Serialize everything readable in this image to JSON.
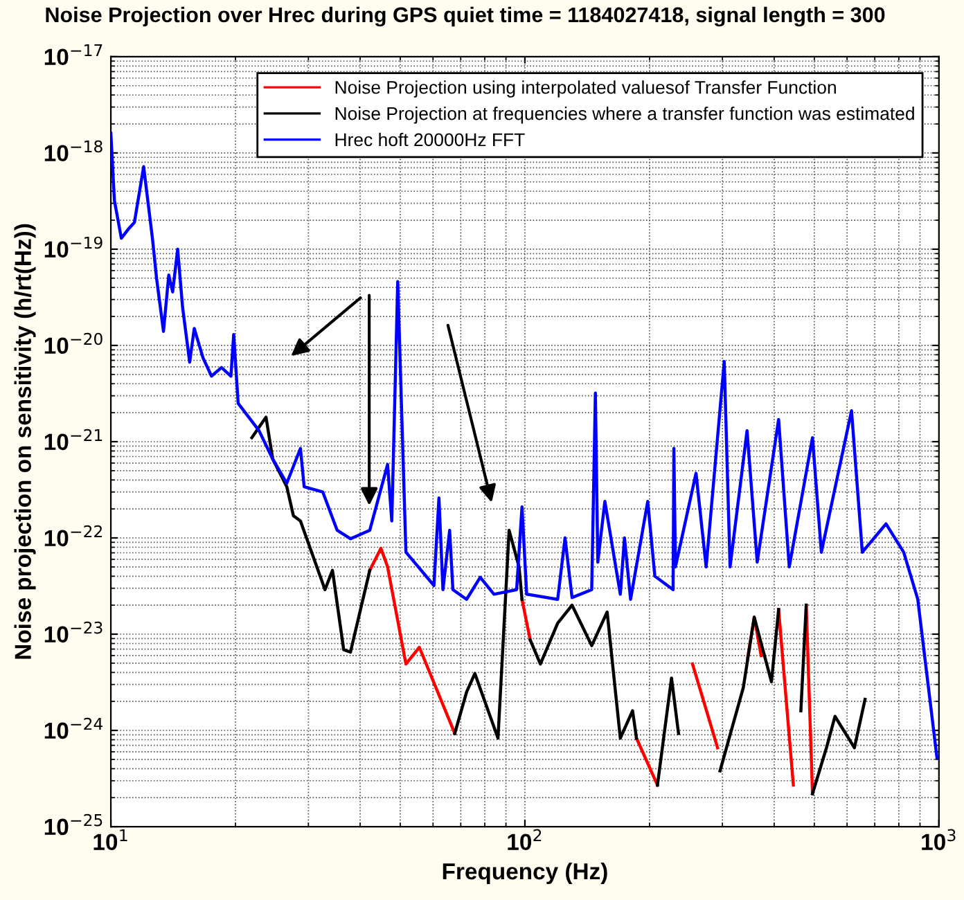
{
  "chart_data": {
    "type": "line",
    "title": "Noise Projection over Hrec during GPS quiet time = 1184027418, signal length = 300",
    "xlabel": "Frequency (Hz)",
    "ylabel": "Noise projection on sensitivity (h/rt(Hz))",
    "log": "xy",
    "grid": true,
    "legend": "top right",
    "line_style": "solid",
    "marker": "none",
    "xlim": [
      10,
      1000
    ],
    "xticks": [
      {
        "value": 10,
        "label": "10$^{1}$"
      },
      {
        "value": 100,
        "label": "10$^{2}$"
      },
      {
        "value": 1000,
        "label": "10$^{3}$"
      }
    ],
    "ylim": [
      1e-25,
      1e-17
    ],
    "yticks": [
      {
        "value": 1e-25,
        "label": "10$^{−25}$"
      },
      {
        "value": 1e-24,
        "label": "10$^{−24}$"
      },
      {
        "value": 1e-23,
        "label": "10$^{−23}$"
      },
      {
        "value": 1e-22,
        "label": "10$^{−22}$"
      },
      {
        "value": 1e-21,
        "label": "10$^{−21}$"
      },
      {
        "value": 1e-20,
        "label": "10$^{−20}$"
      },
      {
        "value": 1e-19,
        "label": "10$^{−19}$"
      },
      {
        "value": 1e-18,
        "label": "10$^{−18}$"
      },
      {
        "value": 1e-17,
        "label": "10$^{−17}$"
      }
    ],
    "series": [
      {
        "name": "Noise Projection using interpolated valuesof Transfer Function",
        "color": "#ff0000",
        "x": [
          42.2,
          44.9,
          46.6,
          51.6,
          55.6,
          67.7,
          80,
          98.4,
          103,
          140,
          186,
          209,
          230,
          254,
          292,
          320,
          345,
          358,
          372,
          390,
          410,
          445,
          470,
          478,
          495
        ],
        "values": [
          4.6e-23,
          7.8e-23,
          5e-23,
          4.9e-24,
          7.3e-24,
          9.3e-25,
          null,
          2.3e-23,
          8.7e-24,
          null,
          8.3e-25,
          2.7e-25,
          null,
          4.9e-24,
          6.6e-25,
          null,
          5.6e-24,
          1.5e-23,
          6e-24,
          null,
          1.8e-23,
          2.7e-25,
          null,
          2e-23,
          2.2e-25
        ]
      },
      {
        "name": "Noise Projection at frequencies where a transfer function was estimated",
        "color": "#000000",
        "x": [
          21.9,
          23.7,
          24.6,
          26.6,
          27.6,
          28.7,
          32.9,
          34.3,
          36.5,
          37.9,
          42.2,
          55,
          67.7,
          72.3,
          75.7,
          86.1,
          91.6,
          96.8,
          98.4,
          100,
          103,
          109,
          120,
          130,
          145,
          158,
          170,
          182,
          186,
          200,
          209,
          226,
          235,
          245,
          296,
          337,
          358,
          394,
          410,
          430,
          464,
          478,
          486,
          495,
          535,
          561,
          625,
          663
        ],
        "values": [
          1.1e-21,
          1.8e-21,
          6.6e-22,
          3.4e-22,
          1.7e-22,
          1.5e-22,
          2.9e-23,
          4.6e-23,
          6.9e-24,
          6.5e-24,
          4.6e-23,
          null,
          9.3e-25,
          2.5e-24,
          3.9e-24,
          8.3e-25,
          1.2e-22,
          5e-23,
          2.3e-23,
          null,
          8.7e-24,
          4.9e-24,
          1.3e-23,
          2e-23,
          7.6e-24,
          1.7e-23,
          8.3e-25,
          1.6e-24,
          8.3e-25,
          null,
          2.7e-25,
          3.5e-24,
          9.3e-25,
          null,
          3.8e-25,
          2.8e-24,
          1.5e-23,
          3.2e-24,
          1.8e-23,
          null,
          1.6e-24,
          2e-23,
          null,
          2.2e-25,
          6.6e-25,
          1.4e-24,
          6.6e-25,
          2.1e-24
        ]
      },
      {
        "name": "Hrec hoft 20000Hz FFT",
        "color": "#0000ff",
        "x": [
          10,
          10.2,
          10.6,
          11.0,
          11.4,
          12.0,
          12.6,
          12.9,
          13.4,
          13.8,
          14.1,
          14.5,
          14.9,
          15.5,
          15.9,
          16.7,
          17.5,
          18.5,
          19.5,
          19.8,
          20.3,
          22.8,
          24.6,
          26.6,
          28.7,
          29.3,
          32.5,
          35.2,
          37.9,
          42.2,
          46.6,
          47.7,
          49.3,
          51.6,
          60.3,
          62,
          63.4,
          65.8,
          67,
          72.3,
          78,
          84.2,
          95.5,
          98.4,
          101,
          120,
          125,
          130,
          145,
          148,
          150,
          156,
          170,
          174,
          180,
          198,
          206,
          228,
          229,
          231,
          259,
          274,
          303,
          313,
          344,
          364,
          410,
          435,
          495,
          520,
          615,
          653,
          745,
          822,
          889,
          989
        ],
        "values": [
          1.6e-18,
          3.2e-19,
          1.3e-19,
          1.6e-19,
          1.9e-19,
          7.2e-19,
          1.3e-19,
          4.9e-20,
          1.4e-20,
          5.4e-20,
          3.6e-20,
          1e-19,
          2.5e-20,
          6.7e-21,
          1.5e-20,
          7.4e-21,
          4.8e-21,
          5.9e-21,
          4.8e-21,
          1.3e-20,
          2.5e-21,
          1.3e-21,
          6.6e-22,
          3.7e-22,
          8.5e-22,
          3.4e-22,
          3e-22,
          1.2e-22,
          9.8e-23,
          1.2e-22,
          5.8e-22,
          1.5e-22,
          4.6e-20,
          7.1e-23,
          3.2e-23,
          2.6e-22,
          2.9e-23,
          1.2e-22,
          2.9e-23,
          2.3e-23,
          3.9e-23,
          2.6e-23,
          2.9e-23,
          2.1e-22,
          2.6e-23,
          2.3e-23,
          1e-22,
          2.4e-23,
          2.9e-23,
          3.2e-21,
          5.6e-23,
          2.4e-22,
          2.6e-23,
          1e-22,
          2.3e-23,
          2.4e-22,
          4e-23,
          2.9e-23,
          8.5e-22,
          5e-23,
          4.7e-22,
          5e-23,
          6.8e-21,
          5e-23,
          1.3e-21,
          5.6e-23,
          1.7e-21,
          5e-23,
          1.1e-21,
          7.1e-23,
          2.1e-21,
          7.1e-23,
          1.4e-22,
          7.1e-23,
          2.3e-23,
          5.2e-25
        ]
      }
    ]
  }
}
